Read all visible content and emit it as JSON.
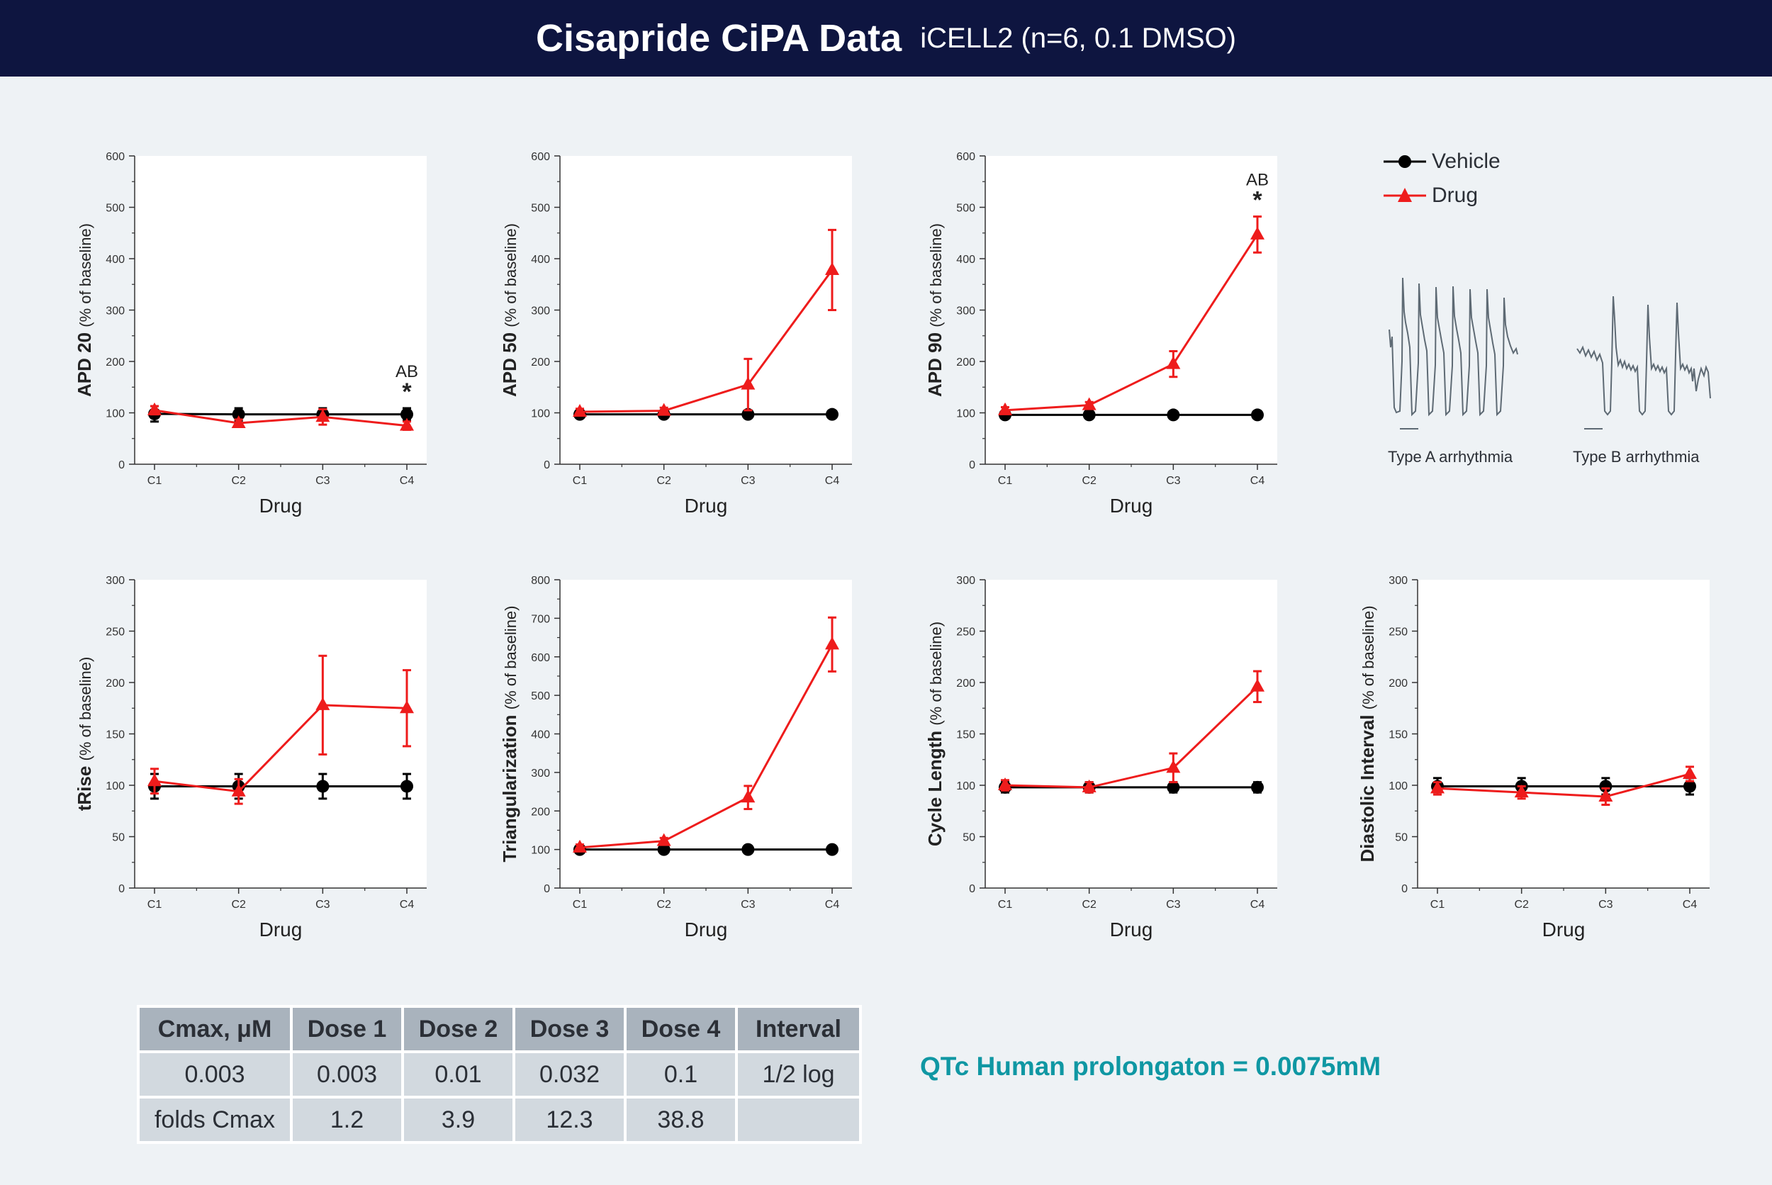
{
  "header": {
    "title": "Cisapride CiPA Data",
    "subtitle": "iCELL2 (n=6, 0.1 DMSO)"
  },
  "legend": {
    "vehicle": "Vehicle",
    "drug": "Drug"
  },
  "colors": {
    "vehicle": "#000000",
    "drug": "#ee1c1c",
    "header_bg": "#0e1540",
    "qtc": "#0f97a3"
  },
  "arrhythmia": {
    "type_a": "Type A arrhythmia",
    "type_b": "Type B arrhythmia"
  },
  "chart_data": [
    {
      "id": "apd20",
      "type": "line",
      "ylabel_main": "APD 20",
      "ylabel_sub": "(% of baseline)",
      "xlabel": "Drug",
      "categories": [
        "C1",
        "C2",
        "C3",
        "C4"
      ],
      "ylim": [
        0,
        600
      ],
      "yticks": [
        0,
        100,
        200,
        300,
        400,
        500,
        600
      ],
      "series": [
        {
          "name": "Vehicle",
          "values": [
            98,
            97,
            97,
            97
          ],
          "errors": [
            15,
            12,
            12,
            12
          ]
        },
        {
          "name": "Drug",
          "values": [
            105,
            80,
            92,
            75
          ],
          "errors": [
            8,
            7,
            15,
            8
          ]
        }
      ],
      "annotation": {
        "category": "C4",
        "text": "AB",
        "star": "*"
      }
    },
    {
      "id": "apd50",
      "type": "line",
      "ylabel_main": "APD 50",
      "ylabel_sub": "(% of baseline)",
      "xlabel": "Drug",
      "categories": [
        "C1",
        "C2",
        "C3",
        "C4"
      ],
      "ylim": [
        0,
        600
      ],
      "yticks": [
        0,
        100,
        200,
        300,
        400,
        500,
        600
      ],
      "series": [
        {
          "name": "Vehicle",
          "values": [
            97,
            97,
            97,
            97
          ],
          "errors": [
            4,
            4,
            4,
            4
          ]
        },
        {
          "name": "Drug",
          "values": [
            102,
            104,
            155,
            378
          ],
          "errors": [
            6,
            6,
            50,
            78
          ]
        }
      ]
    },
    {
      "id": "apd90",
      "type": "line",
      "ylabel_main": "APD 90",
      "ylabel_sub": "(% of baseline)",
      "xlabel": "Drug",
      "categories": [
        "C1",
        "C2",
        "C3",
        "C4"
      ],
      "ylim": [
        0,
        600
      ],
      "yticks": [
        0,
        100,
        200,
        300,
        400,
        500,
        600
      ],
      "series": [
        {
          "name": "Vehicle",
          "values": [
            96,
            96,
            96,
            96
          ],
          "errors": [
            4,
            4,
            4,
            4
          ]
        },
        {
          "name": "Drug",
          "values": [
            105,
            115,
            195,
            447
          ],
          "errors": [
            6,
            6,
            25,
            35
          ]
        }
      ],
      "annotation": {
        "category": "C4",
        "text": "AB",
        "star": "*"
      }
    },
    {
      "id": "trise",
      "type": "line",
      "ylabel_main": "tRise",
      "ylabel_sub": "(% of baseline)",
      "xlabel": "Drug",
      "categories": [
        "C1",
        "C2",
        "C3",
        "C4"
      ],
      "ylim": [
        0,
        300
      ],
      "yticks": [
        0,
        50,
        100,
        150,
        200,
        250,
        300
      ],
      "series": [
        {
          "name": "Vehicle",
          "values": [
            99,
            99,
            99,
            99
          ],
          "errors": [
            12,
            12,
            12,
            12
          ]
        },
        {
          "name": "Drug",
          "values": [
            104,
            94,
            178,
            175
          ],
          "errors": [
            12,
            12,
            48,
            37
          ]
        }
      ]
    },
    {
      "id": "triangularization",
      "type": "line",
      "ylabel_main": "Triangularization",
      "ylabel_sub": "(% of baseline)",
      "xlabel": "Drug",
      "categories": [
        "C1",
        "C2",
        "C3",
        "C4"
      ],
      "ylim": [
        0,
        800
      ],
      "yticks": [
        0,
        100,
        200,
        300,
        400,
        500,
        600,
        700,
        800
      ],
      "series": [
        {
          "name": "Vehicle",
          "values": [
            100,
            100,
            100,
            100
          ],
          "errors": [
            4,
            4,
            4,
            4
          ]
        },
        {
          "name": "Drug",
          "values": [
            105,
            122,
            235,
            632
          ],
          "errors": [
            8,
            8,
            30,
            70
          ]
        }
      ]
    },
    {
      "id": "cycle_length",
      "type": "line",
      "ylabel_main": "Cycle Length",
      "ylabel_sub": "(% of baseline)",
      "xlabel": "Drug",
      "categories": [
        "C1",
        "C2",
        "C3",
        "C4"
      ],
      "ylim": [
        0,
        300
      ],
      "yticks": [
        0,
        50,
        100,
        150,
        200,
        250,
        300
      ],
      "series": [
        {
          "name": "Vehicle",
          "values": [
            98,
            98,
            98,
            98
          ],
          "errors": [
            5,
            5,
            5,
            5
          ]
        },
        {
          "name": "Drug",
          "values": [
            100,
            98,
            117,
            196
          ],
          "errors": [
            5,
            5,
            14,
            15
          ]
        }
      ]
    },
    {
      "id": "diastolic_interval",
      "type": "line",
      "ylabel_main": "Diastolic Interval",
      "ylabel_sub": "(% of baseline)",
      "xlabel": "Drug",
      "categories": [
        "C1",
        "C2",
        "C3",
        "C4"
      ],
      "ylim": [
        0,
        300
      ],
      "yticks": [
        0,
        50,
        100,
        150,
        200,
        250,
        300
      ],
      "series": [
        {
          "name": "Vehicle",
          "values": [
            99,
            99,
            99,
            99
          ],
          "errors": [
            8,
            8,
            8,
            8
          ]
        },
        {
          "name": "Drug",
          "values": [
            97,
            93,
            89,
            111
          ],
          "errors": [
            6,
            6,
            8,
            7
          ]
        }
      ]
    }
  ],
  "dose_table": {
    "headers": [
      "Cmax, μM",
      "Dose 1",
      "Dose 2",
      "Dose 3",
      "Dose 4",
      "Interval"
    ],
    "rows": [
      [
        "0.003",
        "0.003",
        "0.01",
        "0.032",
        "0.1",
        "1/2 log"
      ],
      [
        "folds Cmax",
        "1.2",
        "3.9",
        "12.3",
        "38.8",
        ""
      ]
    ]
  },
  "qtc_note": "QTc Human prolongaton = 0.0075mM"
}
